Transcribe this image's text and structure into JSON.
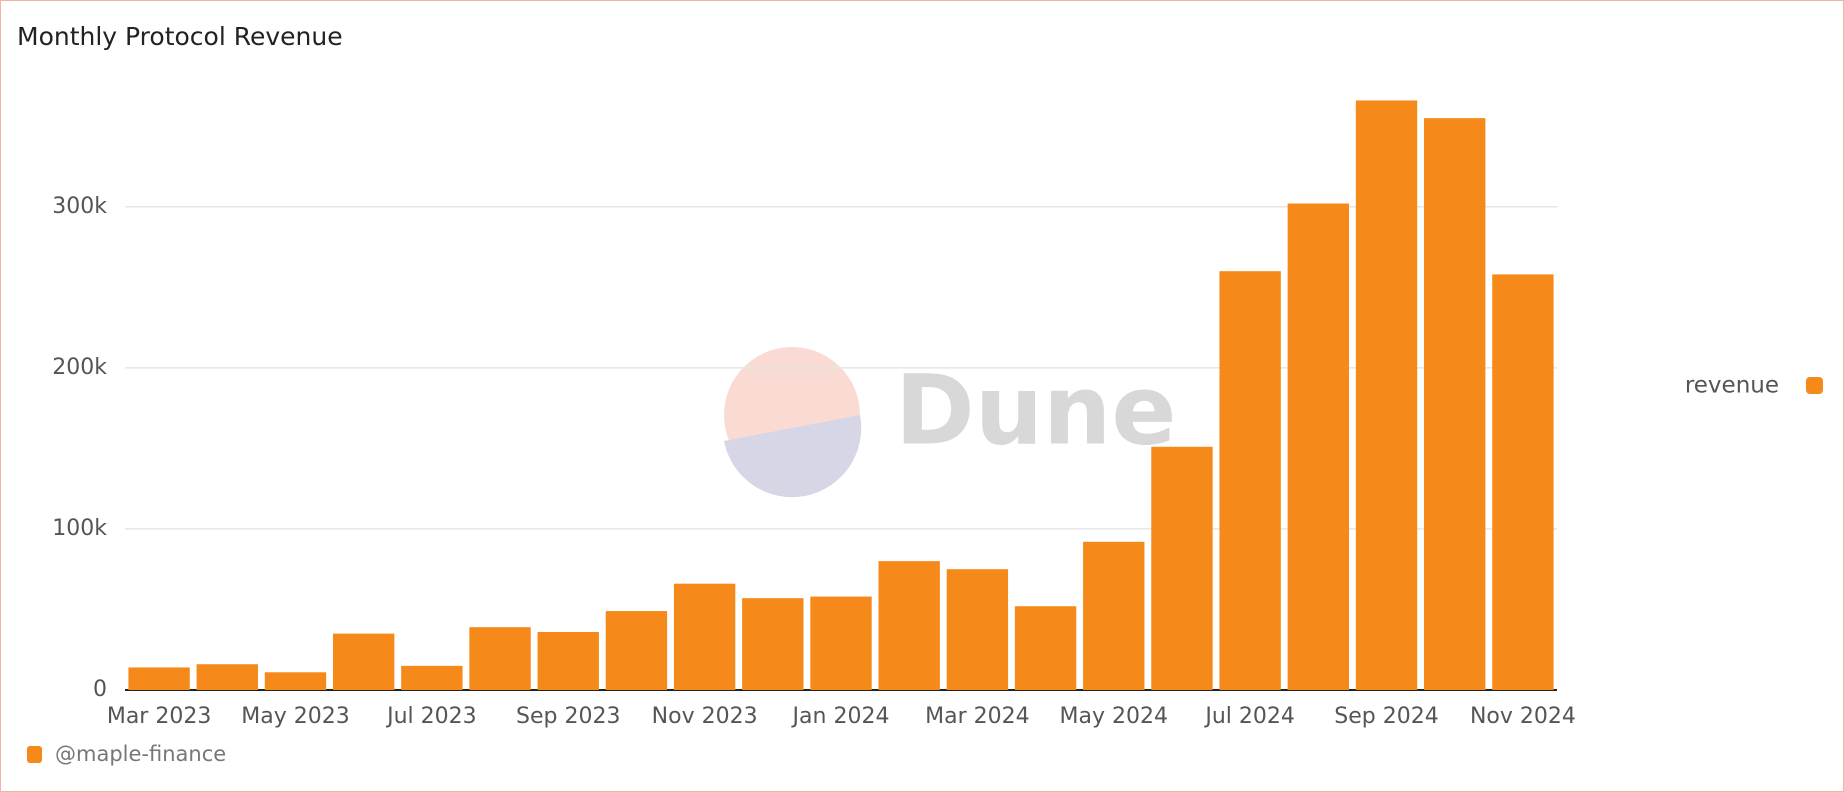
{
  "chart_data": {
    "type": "bar",
    "title": "Monthly Protocol Revenue",
    "watermark": "Dune",
    "source": "@maple-finance",
    "categories": [
      "Mar 2023",
      null,
      "May 2023",
      null,
      "Jul 2023",
      null,
      "Sep 2023",
      null,
      "Nov 2023",
      null,
      "Jan 2024",
      null,
      "Mar 2024",
      null,
      "May 2024",
      null,
      "Jul 2024",
      null,
      "Sep 2024",
      null,
      "Nov 2024"
    ],
    "series": [
      {
        "name": "revenue",
        "color": "#f5891a",
        "values": [
          14000,
          16000,
          11000,
          35000,
          15000,
          39000,
          36000,
          49000,
          66000,
          57000,
          58000,
          80000,
          75000,
          52000,
          92000,
          151000,
          260000,
          302000,
          366000,
          355000,
          258000
        ]
      }
    ],
    "ylim": [
      0,
      370000
    ],
    "yticks": [
      0,
      {
        "value": 100000,
        "label": "100k"
      },
      {
        "value": 200000,
        "label": "200k"
      },
      {
        "value": 300000,
        "label": "300k"
      }
    ],
    "grid": true,
    "legend": "right"
  }
}
